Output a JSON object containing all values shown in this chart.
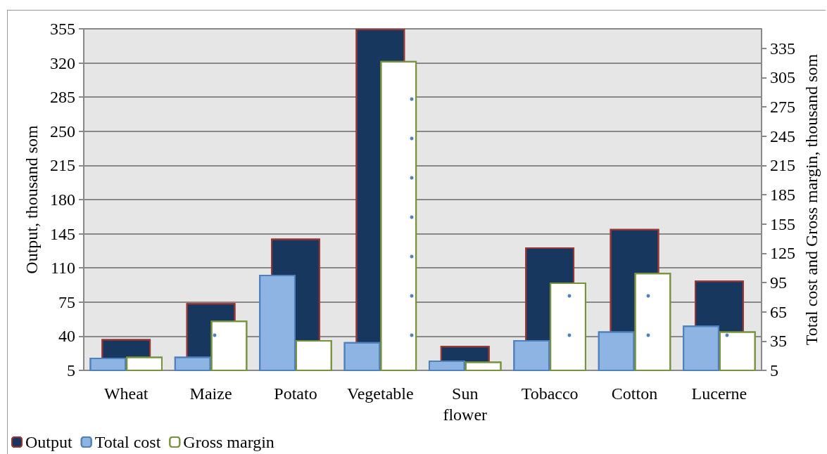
{
  "chart_data": {
    "type": "bar",
    "ylabel": "Output, thousand som",
    "y2label": "Total cost and Gross margin, thousand som",
    "categories": [
      "Wheat",
      "Maize",
      "Potato",
      "Vegetable",
      "Sun flower",
      "Tobacco",
      "Cotton",
      "Lucerne"
    ],
    "series": [
      {
        "name": "Output",
        "color": "#17375e",
        "values": [
          37,
          74,
          140,
          355,
          30,
          131,
          150,
          97
        ]
      },
      {
        "name": "Total cost",
        "color": "#8eb4e3",
        "axis": "y2",
        "values": [
          18,
          19,
          103,
          34,
          15,
          36,
          45,
          51
        ]
      },
      {
        "name": "Gross margin",
        "color": "#ffffff",
        "axis": "y2",
        "values": [
          19,
          56,
          36,
          322,
          14,
          95,
          105,
          45
        ]
      }
    ],
    "ylim": [
      5,
      355
    ],
    "yticks": [
      5,
      40,
      75,
      110,
      145,
      180,
      215,
      250,
      285,
      320,
      355
    ],
    "y2lim": [
      5,
      355
    ],
    "y2ticks": [
      5,
      35,
      65,
      95,
      125,
      155,
      185,
      215,
      245,
      275,
      305,
      335
    ],
    "grid": "y",
    "legend": "bottom left"
  }
}
